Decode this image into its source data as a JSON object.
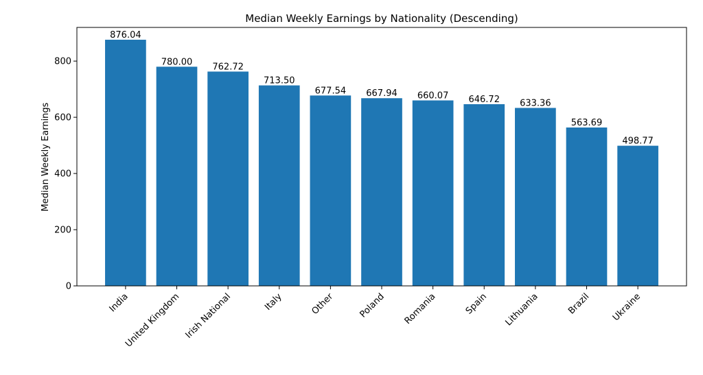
{
  "chart_data": {
    "type": "bar",
    "title": "Median Weekly Earnings by Nationality (Descending)",
    "y_label": "Median Weekly Earnings",
    "categories": [
      "India",
      "United Kingdom",
      "Irish National",
      "Italy",
      "Other",
      "Poland",
      "Romania",
      "Spain",
      "Lithuania",
      "Brazil",
      "Ukraine"
    ],
    "values": [
      876.04,
      780.0,
      762.72,
      713.5,
      677.54,
      667.94,
      660.07,
      646.72,
      633.36,
      563.69,
      498.77
    ],
    "value_labels": [
      "876.04",
      "780.00",
      "762.72",
      "713.50",
      "677.54",
      "667.94",
      "660.07",
      "646.72",
      "633.36",
      "563.69",
      "498.77"
    ],
    "color": "#1f77b4",
    "ylim": [
      0,
      919.84
    ],
    "yticks": [
      0,
      200,
      400,
      600,
      800
    ],
    "grid": false
  }
}
